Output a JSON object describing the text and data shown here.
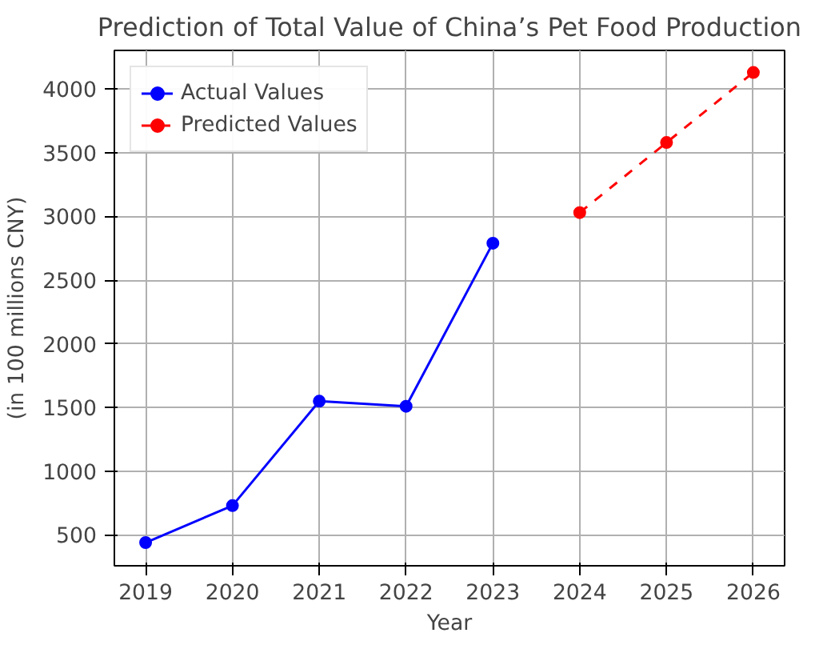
{
  "chart_data": {
    "type": "line",
    "title": "Prediction of Total Value of China’s Pet Food Production",
    "xlabel": "Year",
    "ylabel": "(in 100 millions CNY)",
    "series": [
      {
        "name": "Actual Values",
        "color": "#0000ff",
        "x": [
          2019,
          2020,
          2021,
          2022,
          2023
        ],
        "values": [
          440,
          730,
          1550,
          1510,
          2790
        ],
        "line_style": "solid",
        "marker": "circle"
      },
      {
        "name": "Predicted Values",
        "color": "#ff0000",
        "x": [
          2024,
          2025,
          2026
        ],
        "values": [
          3030,
          3580,
          4130
        ],
        "line_style": "dashed",
        "marker": "circle"
      }
    ],
    "xlim": [
      2018.64,
      2026.36
    ],
    "ylim": [
      258,
      4303
    ],
    "xticks": [
      2019,
      2020,
      2021,
      2022,
      2023,
      2024,
      2025,
      2026
    ],
    "yticks": [
      500,
      1000,
      1500,
      2000,
      2500,
      3000,
      3500,
      4000
    ],
    "grid": true,
    "legend": "top left"
  }
}
